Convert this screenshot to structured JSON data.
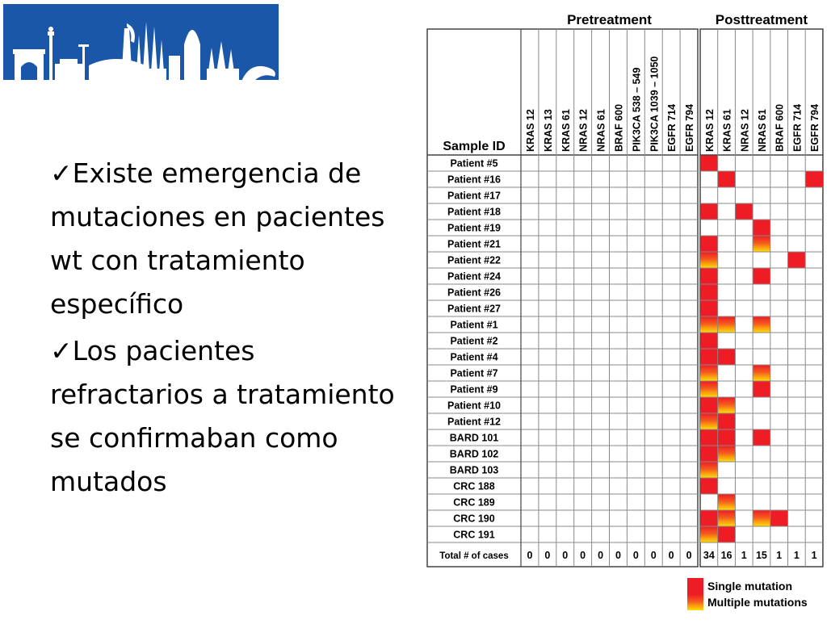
{
  "slide": {
    "bullets": [
      {
        "check": "✓",
        "text": "Existe emergencia de mutaciones en pacientes wt con tratamiento específico"
      },
      {
        "check": "✓",
        "text": "Los pacientes refractarios a tratamiento se confirmaban como mutados"
      }
    ]
  },
  "logo": {
    "icon": "barcelona-skyline-icon",
    "background": "#1a57a8"
  },
  "table": {
    "groups": {
      "pre": "Pretreatment",
      "post": "Posttreatment"
    },
    "sample_id_label": "Sample ID",
    "total_label": "Total # of cases",
    "pre_columns": [
      "KRAS 12",
      "KRAS 13",
      "KRAS 61",
      "NRAS 12",
      "NRAS 61",
      "BRAF 600",
      "PIK3CA 538 – 549",
      "PIK3CA 1039 – 1050",
      "EGFR 714",
      "EGFR 794"
    ],
    "post_columns": [
      "KRAS 12",
      "KRAS 61",
      "NRAS 12",
      "NRAS 61",
      "BRAF 600",
      "EGFR 714",
      "EGFR 794"
    ],
    "rows": [
      {
        "id": "Patient #5",
        "post": [
          1,
          0,
          0,
          0,
          0,
          0,
          0
        ]
      },
      {
        "id": "Patient #16",
        "post": [
          0,
          1,
          0,
          0,
          0,
          0,
          1
        ]
      },
      {
        "id": "Patient #17",
        "post": [
          0,
          0,
          0,
          0,
          0,
          0,
          0
        ]
      },
      {
        "id": "Patient #18",
        "post": [
          1,
          0,
          1,
          0,
          0,
          0,
          0
        ]
      },
      {
        "id": "Patient #19",
        "post": [
          0,
          0,
          0,
          1,
          0,
          0,
          0
        ]
      },
      {
        "id": "Patient #21",
        "post": [
          1,
          0,
          0,
          2,
          0,
          0,
          0
        ]
      },
      {
        "id": "Patient #22",
        "post": [
          2,
          0,
          0,
          0,
          0,
          1,
          0
        ]
      },
      {
        "id": "Patient #24",
        "post": [
          1,
          0,
          0,
          1,
          0,
          0,
          0
        ]
      },
      {
        "id": "Patient #26",
        "post": [
          1,
          0,
          0,
          0,
          0,
          0,
          0
        ]
      },
      {
        "id": "Patient #27",
        "post": [
          1,
          0,
          0,
          0,
          0,
          0,
          0
        ]
      },
      {
        "id": "Patient #1",
        "post": [
          2,
          2,
          0,
          2,
          0,
          0,
          0
        ]
      },
      {
        "id": "Patient #2",
        "post": [
          1,
          0,
          0,
          0,
          0,
          0,
          0
        ]
      },
      {
        "id": "Patient #4",
        "post": [
          1,
          1,
          0,
          0,
          0,
          0,
          0
        ]
      },
      {
        "id": "Patient #7",
        "post": [
          2,
          0,
          0,
          2,
          0,
          0,
          0
        ]
      },
      {
        "id": "Patient #9",
        "post": [
          2,
          0,
          0,
          1,
          0,
          0,
          0
        ]
      },
      {
        "id": "Patient #10",
        "post": [
          1,
          2,
          0,
          0,
          0,
          0,
          0
        ]
      },
      {
        "id": "Patient #12",
        "post": [
          2,
          1,
          0,
          0,
          0,
          0,
          0
        ]
      },
      {
        "id": "BARD 101",
        "post": [
          1,
          1,
          0,
          1,
          0,
          0,
          0
        ]
      },
      {
        "id": "BARD 102",
        "post": [
          1,
          2,
          0,
          0,
          0,
          0,
          0
        ]
      },
      {
        "id": "BARD 103",
        "post": [
          2,
          0,
          0,
          0,
          0,
          0,
          0
        ]
      },
      {
        "id": "CRC 188",
        "post": [
          1,
          0,
          0,
          0,
          0,
          0,
          0
        ]
      },
      {
        "id": "CRC 189",
        "post": [
          0,
          2,
          0,
          0,
          0,
          0,
          0
        ]
      },
      {
        "id": "CRC 190",
        "post": [
          1,
          2,
          0,
          2,
          1,
          0,
          0
        ]
      },
      {
        "id": "CRC 191",
        "post": [
          2,
          1,
          0,
          0,
          0,
          0,
          0
        ]
      }
    ],
    "pre_totals": [
      0,
      0,
      0,
      0,
      0,
      0,
      0,
      0,
      0,
      0
    ],
    "post_totals": [
      34,
      16,
      1,
      15,
      1,
      1,
      1
    ],
    "legend": {
      "single": "Single mutation",
      "multiple": "Multiple mutations"
    },
    "colors": {
      "single": "#ee1c25",
      "multiple_top": "#ee1c25",
      "multiple_bottom": "#ffe000"
    }
  }
}
